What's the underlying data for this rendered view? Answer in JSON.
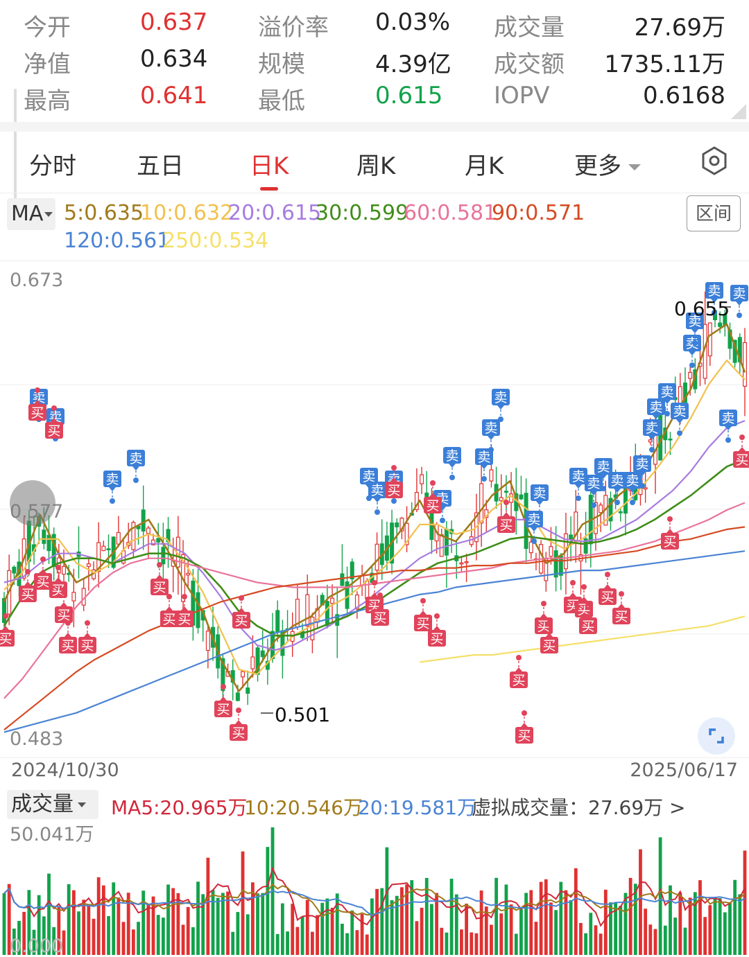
{
  "stats": {
    "open": {
      "label": "今开",
      "value": "0.637"
    },
    "premium": {
      "label": "溢价率",
      "value": "0.03%"
    },
    "volume": {
      "label": "成交量",
      "value": "27.69万"
    },
    "nav": {
      "label": "净值",
      "value": "0.634"
    },
    "scale": {
      "label": "规模",
      "value": "4.39亿"
    },
    "turnover": {
      "label": "成交额",
      "value": "1735.11万"
    },
    "high": {
      "label": "最高",
      "value": "0.641"
    },
    "low": {
      "label": "最低",
      "value": "0.615"
    },
    "iopv": {
      "label": "IOPV",
      "value": "0.6168"
    }
  },
  "tabs": [
    {
      "label": "分时"
    },
    {
      "label": "五日"
    },
    {
      "label": "日K"
    },
    {
      "label": "周K"
    },
    {
      "label": "月K"
    },
    {
      "label": "更多"
    }
  ],
  "active_tab": "日K",
  "ma": {
    "selector": "MA",
    "items": [
      {
        "label": "5:0.635",
        "color": "#a07a1a"
      },
      {
        "label": "10:0.632",
        "color": "#f2c14e"
      },
      {
        "label": "20:0.615",
        "color": "#a77be0"
      },
      {
        "label": "30:0.599",
        "color": "#3f8d18"
      },
      {
        "label": "60:0.581",
        "color": "#e9739a"
      },
      {
        "label": "90:0.571",
        "color": "#d64a22"
      },
      {
        "label": "120:0.561",
        "color": "#4a83d4"
      },
      {
        "label": "250:0.534",
        "color": "#f5e06a"
      }
    ],
    "range_button": "区间"
  },
  "price_axis": {
    "top": "0.673",
    "middle": "0.577",
    "bottom": "0.483"
  },
  "annotations": {
    "high": "0.655",
    "low": "0.501"
  },
  "dates": {
    "start": "2024/10/30",
    "end": "2025/06/17"
  },
  "volume": {
    "selector": "成交量",
    "ma5": "MA5:20.965万",
    "ma10": "10:20.546万",
    "ma20": "20:19.581万",
    "virtual": "虚拟成交量：27.69万 >",
    "axis_top": "50.041万",
    "axis_bottom": "0.000"
  },
  "signals": {
    "buy": "买",
    "sell": "卖"
  },
  "colors": {
    "up": "#e03131",
    "down": "#12a24b",
    "sell_tag": "#3b7fd8",
    "buy_tag": "#e0435a"
  },
  "chart_data": {
    "type": "line",
    "ylim": [
      0.483,
      0.673
    ],
    "x_range": [
      "2024/10/30",
      "2025/06/17"
    ],
    "series": [
      {
        "name": "5",
        "values": [
          0.54,
          0.556,
          0.576,
          0.56,
          0.548,
          0.552,
          0.56,
          0.57,
          0.574,
          0.562,
          0.548,
          0.536,
          0.516,
          0.503,
          0.512,
          0.524,
          0.53,
          0.534,
          0.542,
          0.546,
          0.552,
          0.56,
          0.57,
          0.582,
          0.568,
          0.565,
          0.574,
          0.584,
          0.59,
          0.57,
          0.556,
          0.56,
          0.572,
          0.576,
          0.584,
          0.59,
          0.602,
          0.616,
          0.628,
          0.65,
          0.655,
          0.635
        ]
      },
      {
        "name": "10",
        "values": [
          0.545,
          0.552,
          0.566,
          0.566,
          0.556,
          0.552,
          0.556,
          0.565,
          0.568,
          0.566,
          0.556,
          0.544,
          0.528,
          0.512,
          0.51,
          0.518,
          0.526,
          0.53,
          0.538,
          0.542,
          0.548,
          0.554,
          0.562,
          0.572,
          0.572,
          0.568,
          0.57,
          0.578,
          0.584,
          0.578,
          0.566,
          0.562,
          0.566,
          0.572,
          0.578,
          0.585,
          0.594,
          0.604,
          0.616,
          0.63,
          0.64,
          0.632
        ]
      },
      {
        "name": "20",
        "values": [
          0.548,
          0.55,
          0.556,
          0.56,
          0.56,
          0.558,
          0.556,
          0.56,
          0.564,
          0.564,
          0.56,
          0.552,
          0.542,
          0.53,
          0.522,
          0.52,
          0.522,
          0.526,
          0.53,
          0.535,
          0.54,
          0.546,
          0.552,
          0.558,
          0.562,
          0.564,
          0.566,
          0.57,
          0.574,
          0.574,
          0.57,
          0.566,
          0.565,
          0.566,
          0.57,
          0.574,
          0.58,
          0.586,
          0.594,
          0.604,
          0.612,
          0.615
        ]
      },
      {
        "name": "30",
        "values": [
          0.53,
          0.542,
          0.552,
          0.556,
          0.558,
          0.558,
          0.556,
          0.558,
          0.56,
          0.56,
          0.558,
          0.554,
          0.546,
          0.536,
          0.53,
          0.526,
          0.526,
          0.528,
          0.531,
          0.534,
          0.538,
          0.542,
          0.547,
          0.552,
          0.556,
          0.558,
          0.56,
          0.563,
          0.566,
          0.567,
          0.566,
          0.565,
          0.564,
          0.565,
          0.567,
          0.57,
          0.574,
          0.579,
          0.584,
          0.59,
          0.596,
          0.599
        ]
      },
      {
        "name": "60",
        "values": [
          0.5,
          0.508,
          0.518,
          0.528,
          0.538,
          0.546,
          0.552,
          0.556,
          0.558,
          0.558,
          0.556,
          0.554,
          0.552,
          0.55,
          0.548,
          0.547,
          0.546,
          0.546,
          0.546,
          0.546,
          0.547,
          0.548,
          0.549,
          0.55,
          0.551,
          0.552,
          0.553,
          0.554,
          0.556,
          0.557,
          0.558,
          0.558,
          0.559,
          0.56,
          0.561,
          0.563,
          0.565,
          0.568,
          0.571,
          0.574,
          0.578,
          0.581
        ]
      },
      {
        "name": "90",
        "values": [
          0.487,
          0.493,
          0.499,
          0.505,
          0.511,
          0.516,
          0.52,
          0.524,
          0.528,
          0.531,
          0.534,
          0.537,
          0.54,
          0.542,
          0.544,
          0.546,
          0.547,
          0.548,
          0.549,
          0.55,
          0.551,
          0.552,
          0.553,
          0.553,
          0.554,
          0.554,
          0.555,
          0.555,
          0.556,
          0.556,
          0.557,
          0.557,
          0.558,
          0.559,
          0.56,
          0.561,
          0.563,
          0.565,
          0.566,
          0.568,
          0.57,
          0.571
        ]
      },
      {
        "name": "120",
        "values": [
          0.486,
          0.488,
          0.49,
          0.492,
          0.494,
          0.497,
          0.5,
          0.503,
          0.506,
          0.509,
          0.512,
          0.515,
          0.518,
          0.521,
          0.524,
          0.527,
          0.529,
          0.531,
          0.533,
          0.535,
          0.537,
          0.539,
          0.541,
          0.543,
          0.544,
          0.546,
          0.547,
          0.548,
          0.549,
          0.55,
          0.551,
          0.552,
          0.553,
          0.553,
          0.554,
          0.555,
          0.556,
          0.557,
          0.558,
          0.559,
          0.56,
          0.561
        ]
      },
      {
        "name": "250",
        "values": [
          null,
          null,
          null,
          null,
          null,
          null,
          null,
          null,
          null,
          null,
          null,
          null,
          null,
          null,
          null,
          null,
          null,
          null,
          null,
          null,
          null,
          null,
          null,
          0.515,
          0.516,
          0.517,
          0.518,
          0.518,
          0.519,
          0.52,
          0.521,
          0.522,
          0.523,
          0.524,
          0.525,
          0.526,
          0.527,
          0.528,
          0.529,
          0.53,
          0.532,
          0.534
        ]
      }
    ]
  }
}
